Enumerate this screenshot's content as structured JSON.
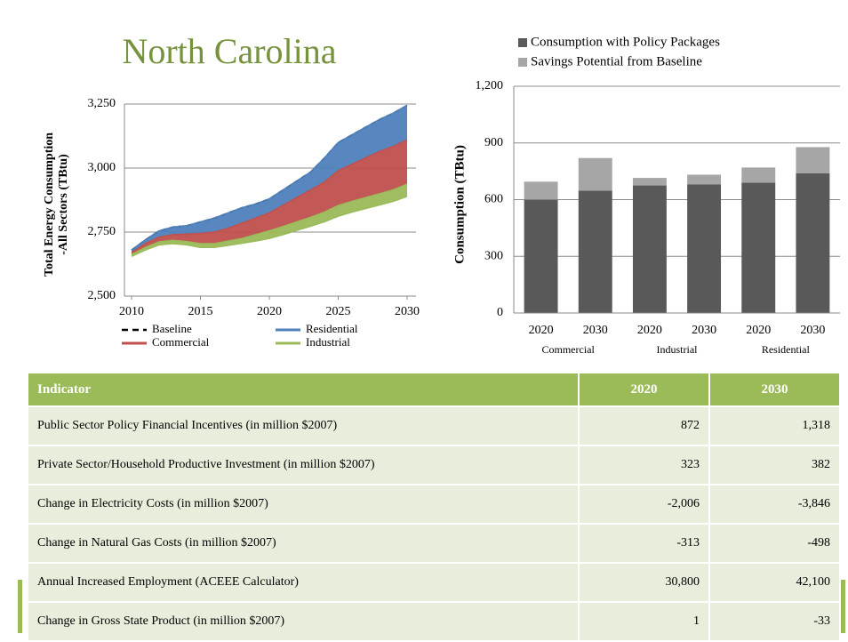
{
  "chart_data": [
    {
      "type": "area",
      "title": "North Carolina",
      "y_label": [
        "Total Energy Consumption",
        "-All Sectors  (TBtu)"
      ],
      "x": [
        2010,
        2011,
        2012,
        2013,
        2014,
        2015,
        2016,
        2017,
        2018,
        2019,
        2020,
        2021,
        2022,
        2023,
        2024,
        2025,
        2026,
        2027,
        2028,
        2029,
        2030
      ],
      "xlim": [
        2010,
        2030
      ],
      "xticks": [
        2010,
        2015,
        2020,
        2025,
        2030
      ],
      "ylim": [
        2500,
        3250
      ],
      "yticks": [
        {
          "value": 2500,
          "label": "2,500"
        },
        {
          "value": 2750,
          "label": "2,750"
        },
        {
          "value": 3000,
          "label": "3,000"
        },
        {
          "value": 3250,
          "label": "3,250"
        }
      ],
      "grid": true,
      "series": [
        {
          "name": "Baseline",
          "color": "#000000",
          "dashed": true,
          "values": [
            2680,
            2720,
            2755,
            2770,
            2775,
            2790,
            2805,
            2825,
            2845,
            2860,
            2880,
            2915,
            2950,
            2985,
            3040,
            3100,
            3130,
            3160,
            3190,
            3215,
            3245
          ]
        },
        {
          "name": "Residential",
          "color": "#4f81bd",
          "values": [
            2680,
            2720,
            2755,
            2770,
            2775,
            2790,
            2805,
            2825,
            2845,
            2860,
            2880,
            2915,
            2950,
            2985,
            3040,
            3100,
            3130,
            3160,
            3190,
            3215,
            3245
          ]
        },
        {
          "name": "Commercial",
          "color": "#c0504d",
          "values": [
            2670,
            2705,
            2730,
            2740,
            2742,
            2745,
            2750,
            2765,
            2785,
            2805,
            2825,
            2855,
            2885,
            2915,
            2945,
            2990,
            3015,
            3040,
            3065,
            3085,
            3110
          ]
        },
        {
          "name": "Industrial",
          "color": "#9bbb59",
          "values": [
            2662,
            2690,
            2712,
            2718,
            2713,
            2705,
            2705,
            2715,
            2725,
            2740,
            2755,
            2772,
            2790,
            2808,
            2828,
            2854,
            2870,
            2885,
            2900,
            2915,
            2937
          ],
          "low": [
            2655,
            2680,
            2700,
            2705,
            2700,
            2690,
            2690,
            2698,
            2706,
            2715,
            2725,
            2740,
            2757,
            2773,
            2790,
            2812,
            2828,
            2842,
            2856,
            2870,
            2889
          ]
        }
      ]
    },
    {
      "type": "bar",
      "stacked": true,
      "y_label": "Consumption (TBtu)",
      "categories": [
        "2020",
        "2030",
        "2020",
        "2030",
        "2020",
        "2030"
      ],
      "groups": [
        "Commercial",
        "Industrial",
        "Residential"
      ],
      "ylim": [
        0,
        1200
      ],
      "yticks": [
        0,
        300,
        600,
        900,
        {
          "value": 1200,
          "label": "1,200"
        }
      ],
      "grid": true,
      "legend": "top",
      "series": [
        {
          "name": "Consumption with Policy Packages",
          "color": "#595959",
          "values": [
            600,
            648,
            675,
            680,
            690,
            740
          ]
        },
        {
          "name": "Savings Potential from Baseline",
          "color": "#a6a6a6",
          "values": [
            95,
            172,
            40,
            52,
            80,
            138
          ]
        }
      ]
    }
  ],
  "table": {
    "header": [
      "Indicator",
      "2020",
      "2030"
    ],
    "rows": [
      [
        "Public Sector Policy Financial Incentives (in million $2007)",
        "872",
        "1,318"
      ],
      [
        "Private Sector/Household Productive Investment (in million $2007)",
        "323",
        "382"
      ],
      [
        "Change in Electricity Costs (in million $2007)",
        "-2,006",
        "-3,846"
      ],
      [
        "Change in Natural Gas Costs (in million $2007)",
        "-313",
        "-498"
      ],
      [
        "Annual Increased Employment (ACEEE Calculator)",
        "30,800",
        "42,100"
      ],
      [
        "Change in Gross State Product (in million $2007)",
        "1",
        "-33"
      ]
    ]
  }
}
